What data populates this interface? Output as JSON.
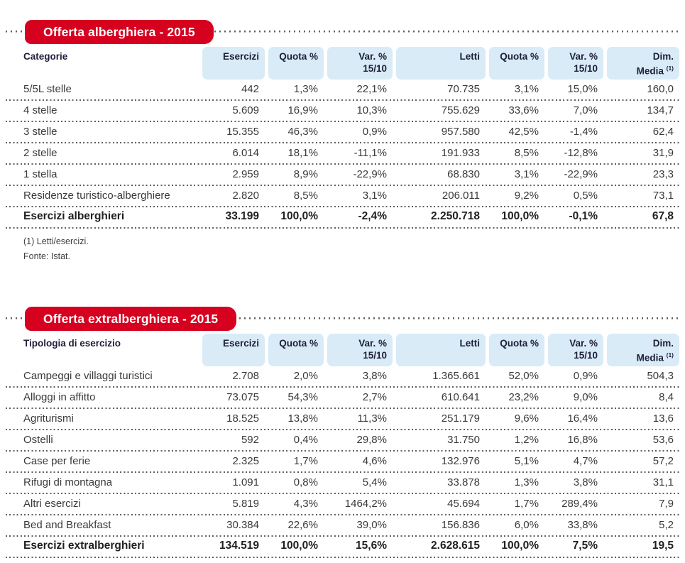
{
  "colors": {
    "banner_red": "#d6001f",
    "header_blue": "#d9ebf7",
    "header_text": "#1e1e3a",
    "body_text": "#3a3a3a",
    "dots_gray": "#5f5f5f"
  },
  "table1": {
    "title": "Offerta alberghiera - 2015",
    "row_header": "Categorie",
    "columns": [
      {
        "line1": "Esercizi"
      },
      {
        "line1": "Quota %"
      },
      {
        "line1": "Var. %",
        "line2": "15/10"
      },
      {
        "line1": "Letti"
      },
      {
        "line1": "Quota %"
      },
      {
        "line1": "Var. %",
        "line2": "15/10"
      },
      {
        "line1": "Dim.",
        "line2": "Media",
        "sup": "(1)"
      }
    ],
    "rows": [
      {
        "label": "5/5L stelle",
        "values": [
          "442",
          "1,3%",
          "22,1%",
          "70.735",
          "3,1%",
          "15,0%",
          "160,0"
        ]
      },
      {
        "label": "4 stelle",
        "values": [
          "5.609",
          "16,9%",
          "10,3%",
          "755.629",
          "33,6%",
          "7,0%",
          "134,7"
        ]
      },
      {
        "label": "3 stelle",
        "values": [
          "15.355",
          "46,3%",
          "0,9%",
          "957.580",
          "42,5%",
          "-1,4%",
          "62,4"
        ]
      },
      {
        "label": "2 stelle",
        "values": [
          "6.014",
          "18,1%",
          "-11,1%",
          "191.933",
          "8,5%",
          "-12,8%",
          "31,9"
        ]
      },
      {
        "label": "1 stella",
        "values": [
          "2.959",
          "8,9%",
          "-22,9%",
          "68.830",
          "3,1%",
          "-22,9%",
          "23,3"
        ]
      },
      {
        "label": "Residenze turistico-alberghiere",
        "values": [
          "2.820",
          "8,5%",
          "3,1%",
          "206.011",
          "9,2%",
          "0,5%",
          "73,1"
        ]
      },
      {
        "label": "Esercizi alberghieri",
        "is_total": true,
        "values": [
          "33.199",
          "100,0%",
          "-2,4%",
          "2.250.718",
          "100,0%",
          "-0,1%",
          "67,8"
        ]
      }
    ],
    "notes": [
      "(1) Letti/esercizi.",
      "Fonte: Istat."
    ]
  },
  "table2": {
    "title": "Offerta extralberghiera - 2015",
    "row_header": "Tipologia di esercizio",
    "columns": [
      {
        "line1": "Esercizi"
      },
      {
        "line1": "Quota %"
      },
      {
        "line1": "Var. %",
        "line2": "15/10"
      },
      {
        "line1": "Letti"
      },
      {
        "line1": "Quota %"
      },
      {
        "line1": "Var. %",
        "line2": "15/10"
      },
      {
        "line1": "Dim.",
        "line2": "Media",
        "sup": "(1)"
      }
    ],
    "rows": [
      {
        "label": "Campeggi e villaggi turistici",
        "values": [
          "2.708",
          "2,0%",
          "3,8%",
          "1.365.661",
          "52,0%",
          "0,9%",
          "504,3"
        ]
      },
      {
        "label": "Alloggi in affitto",
        "values": [
          "73.075",
          "54,3%",
          "2,7%",
          "610.641",
          "23,2%",
          "9,0%",
          "8,4"
        ]
      },
      {
        "label": "Agriturismi",
        "values": [
          "18.525",
          "13,8%",
          "11,3%",
          "251.179",
          "9,6%",
          "16,4%",
          "13,6"
        ]
      },
      {
        "label": "Ostelli",
        "values": [
          "592",
          "0,4%",
          "29,8%",
          "31.750",
          "1,2%",
          "16,8%",
          "53,6"
        ]
      },
      {
        "label": "Case per ferie",
        "values": [
          "2.325",
          "1,7%",
          "4,6%",
          "132.976",
          "5,1%",
          "4,7%",
          "57,2"
        ]
      },
      {
        "label": "Rifugi di montagna",
        "values": [
          "1.091",
          "0,8%",
          "5,4%",
          "33.878",
          "1,3%",
          "3,8%",
          "31,1"
        ]
      },
      {
        "label": "Altri esercizi",
        "values": [
          "5.819",
          "4,3%",
          "1464,2%",
          "45.694",
          "1,7%",
          "289,4%",
          "7,9"
        ]
      },
      {
        "label": "Bed and Breakfast",
        "values": [
          "30.384",
          "22,6%",
          "39,0%",
          "156.836",
          "6,0%",
          "33,8%",
          "5,2"
        ]
      },
      {
        "label": "Esercizi extralberghieri",
        "is_total": true,
        "values": [
          "134.519",
          "100,0%",
          "15,6%",
          "2.628.615",
          "100,0%",
          "7,5%",
          "19,5"
        ]
      }
    ]
  }
}
